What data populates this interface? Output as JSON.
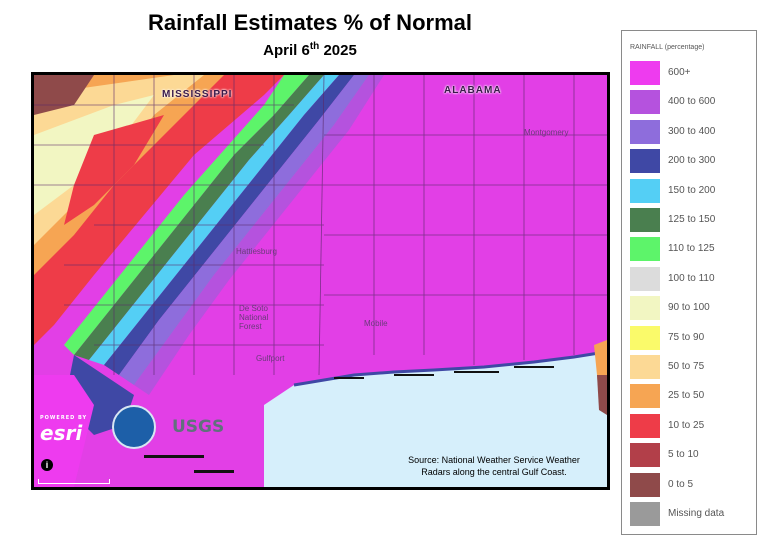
{
  "title": "Rainfall Estimates % of Normal",
  "subtitle": {
    "text": "April 6",
    "sup": "th",
    "year": " 2025"
  },
  "map": {
    "state_labels": [
      "MISSISSIPPI",
      "ALABAMA"
    ],
    "city_labels": [
      "Hattiesburg",
      "De Soto National Forest",
      "Mobile",
      "Gulfport",
      "Montgomery"
    ],
    "source_note": "Source: National Weather Service Weather Radars along the central Gulf Coast.",
    "attribution": {
      "esri_powered": "POWERED BY",
      "esri": "esri",
      "usgs": "USGS"
    },
    "info_icon": "info-icon"
  },
  "legend": {
    "title": "RAINFALL (percentage)",
    "items": [
      {
        "label": "600+",
        "color": "#ee3bef"
      },
      {
        "label": "400 to 600",
        "color": "#b552de"
      },
      {
        "label": "300 to 400",
        "color": "#8e6ddc"
      },
      {
        "label": "200 to 300",
        "color": "#3f48a5"
      },
      {
        "label": "150 to 200",
        "color": "#54cff5"
      },
      {
        "label": "125 to 150",
        "color": "#4a7f4f"
      },
      {
        "label": "110 to 125",
        "color": "#5df46a"
      },
      {
        "label": "100 to 110",
        "color": "#dcdcdc"
      },
      {
        "label": "90 to 100",
        "color": "#f2f6c2"
      },
      {
        "label": "75 to 90",
        "color": "#fafa6a"
      },
      {
        "label": "50 to 75",
        "color": "#fcd995"
      },
      {
        "label": "25 to 50",
        "color": "#f6a553"
      },
      {
        "label": "10 to 25",
        "color": "#ee3c48"
      },
      {
        "label": "5 to 10",
        "color": "#b23f49"
      },
      {
        "label": "0 to 5",
        "color": "#8f4a4a"
      },
      {
        "label": "Missing data",
        "color": "#9a9a9a"
      }
    ]
  }
}
